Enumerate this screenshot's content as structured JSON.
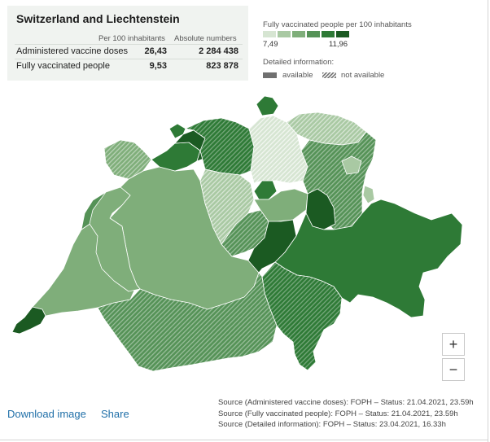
{
  "summary": {
    "title": "Switzerland and Liechtenstein",
    "col_per_100": "Per 100 inhabitants",
    "col_absolute": "Absolute numbers",
    "rows": [
      {
        "label": "Administered vaccine doses",
        "per_100": "26,43",
        "absolute": "2 284 438"
      },
      {
        "label": "Fully vaccinated people",
        "per_100": "9,53",
        "absolute": "823 878"
      }
    ]
  },
  "legend": {
    "title": "Fully vaccinated people per 100 inhabitants",
    "min": "7,49",
    "max": "11,96",
    "colors": [
      "#d6e5d2",
      "#a9c9a3",
      "#7fae7a",
      "#559257",
      "#2e7a36",
      "#1b5a22"
    ]
  },
  "detail": {
    "title": "Detailed information:",
    "available": "available",
    "not_available": "not available"
  },
  "map": {
    "name": "Switzerland and Liechtenstein cantons choropleth",
    "colors": {
      "lightest": "#d6e5d2",
      "light": "#a9c9a3",
      "mid_light": "#7fae7a",
      "mid": "#559257",
      "mid_dark": "#2e7a36",
      "dark": "#1b5a22",
      "border": "#ffffff"
    }
  },
  "controls": {
    "zoom_in": "+",
    "zoom_out": "−"
  },
  "actions": {
    "download": "Download image",
    "share": "Share"
  },
  "sources": [
    "Source (Administered vaccine doses): FOPH – Status: 21.04.2021, 23.59h",
    "Source (Fully vaccinated people): FOPH – Status: 21.04.2021, 23.59h",
    "Source (Detailed information): FOPH – Status: 23.04.2021, 16.33h"
  ]
}
